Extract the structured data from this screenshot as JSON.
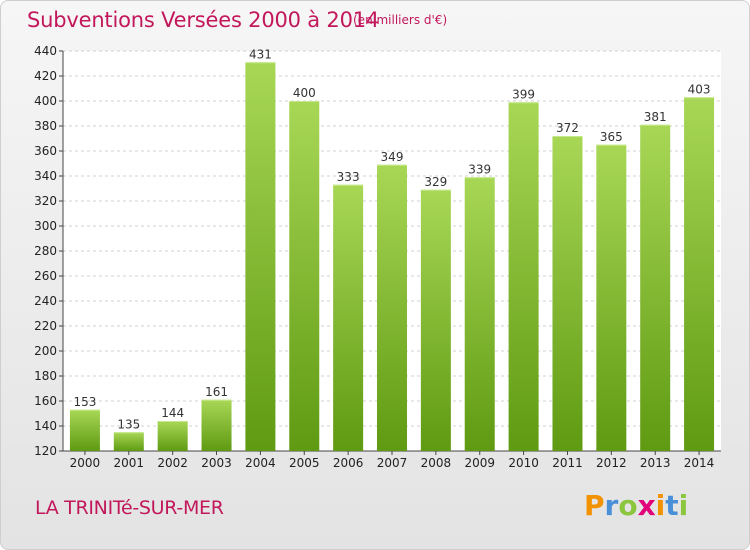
{
  "header": {
    "title": "Subventions Versées 2000 à 2014",
    "subtitle": "(en milliers d'€)"
  },
  "footer": {
    "commune": "LA TRINITé-SUR-MER",
    "logo_text": "Proxiti",
    "logo_letters": [
      {
        "ch": "P",
        "color": "#f39200"
      },
      {
        "ch": "r",
        "color": "#4a90d9"
      },
      {
        "ch": "o",
        "color": "#8cc63f"
      },
      {
        "ch": "x",
        "color": "#e2007a"
      },
      {
        "ch": "i",
        "color": "#f39200"
      },
      {
        "ch": "t",
        "color": "#4a90d9"
      },
      {
        "ch": "i",
        "color": "#8cc63f"
      }
    ]
  },
  "chart_data": {
    "type": "bar",
    "title": "Subventions Versées 2000 à 2014",
    "xlabel": "",
    "ylabel": "",
    "categories": [
      "2000",
      "2001",
      "2002",
      "2003",
      "2004",
      "2005",
      "2006",
      "2007",
      "2008",
      "2009",
      "2010",
      "2011",
      "2012",
      "2013",
      "2014"
    ],
    "values": [
      153,
      135,
      144,
      161,
      431,
      400,
      333,
      349,
      329,
      339,
      399,
      372,
      365,
      381,
      403
    ],
    "ylim": [
      120,
      440
    ],
    "yticks": [
      120,
      140,
      160,
      180,
      200,
      220,
      240,
      260,
      280,
      300,
      320,
      340,
      360,
      380,
      400,
      420,
      440
    ],
    "grid": true,
    "bar_color": "#7ab51d",
    "bar_color_light": "#a7d653",
    "data_labels": true
  }
}
